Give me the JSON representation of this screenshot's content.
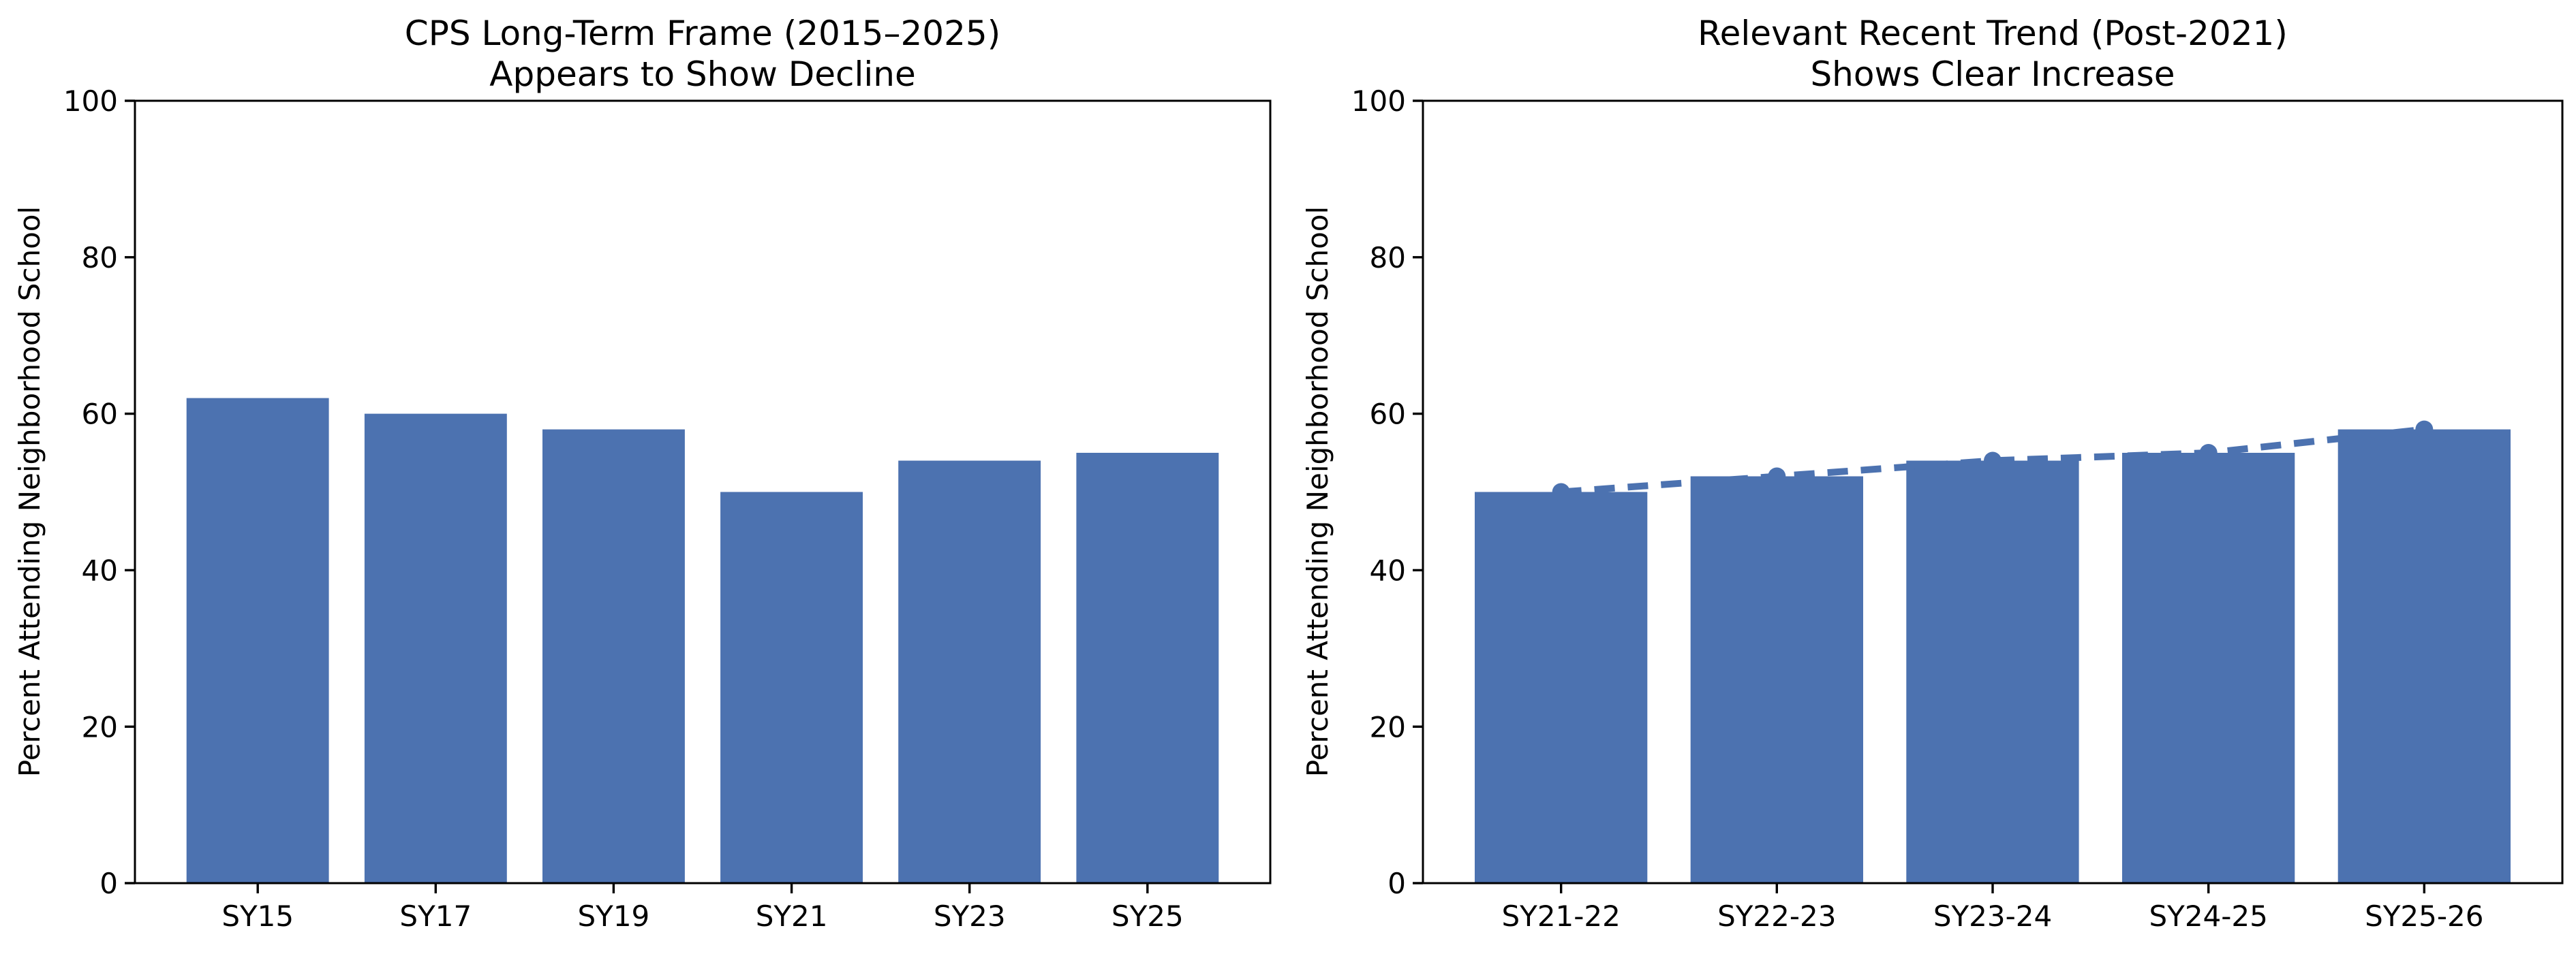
{
  "page": {
    "background_color": "#ffffff",
    "text_color": "#000000"
  },
  "chart_data": [
    {
      "type": "bar",
      "title_lines": [
        "CPS Long-Term Frame (2015–2025)",
        "Appears to Show Decline"
      ],
      "ylabel": "Percent Attending Neighborhood School",
      "xlabel": "",
      "categories": [
        "SY15",
        "SY17",
        "SY19",
        "SY21",
        "SY23",
        "SY25"
      ],
      "values": [
        62,
        60,
        58,
        50,
        54,
        55
      ],
      "ylim": [
        0,
        100
      ],
      "yticks": [
        0,
        20,
        40,
        60,
        80,
        100
      ],
      "bar_color": "#4C72B0",
      "grid": false,
      "legend": false
    },
    {
      "type": "bar",
      "title_lines": [
        "Relevant Recent Trend (Post-2021)",
        "Shows Clear Increase"
      ],
      "ylabel": "Percent Attending Neighborhood School",
      "xlabel": "",
      "categories": [
        "SY21-22",
        "SY22-23",
        "SY23-24",
        "SY24-25",
        "SY25-26"
      ],
      "values": [
        50,
        52,
        54,
        55,
        58
      ],
      "ylim": [
        0,
        100
      ],
      "yticks": [
        0,
        20,
        40,
        60,
        80,
        100
      ],
      "bar_color": "#4C72B0",
      "grid": false,
      "legend": false,
      "overlay_line": {
        "style": "dashed",
        "marker": "circle",
        "color": "#4C72B0",
        "values": [
          50,
          52,
          54,
          55,
          58
        ]
      }
    }
  ]
}
